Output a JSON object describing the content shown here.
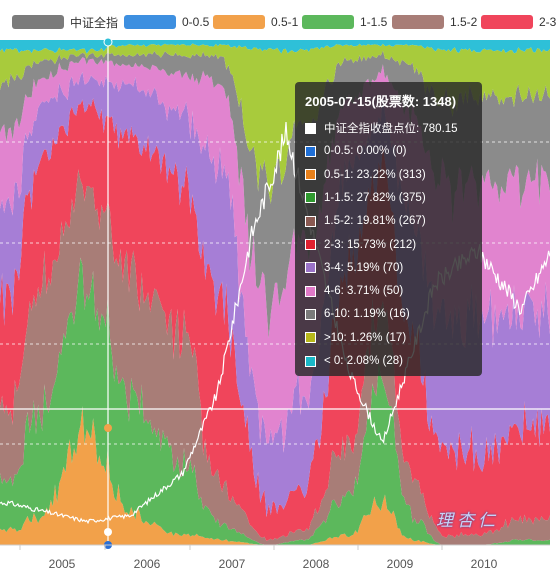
{
  "legend": [
    {
      "label": "中证全指",
      "color": "#7b7b7b"
    },
    {
      "label": "0-0.5",
      "color": "#3d8fe0"
    },
    {
      "label": "0.5-1",
      "color": "#f2a14a"
    },
    {
      "label": "1-1.5",
      "color": "#5cb85c"
    },
    {
      "label": "1.5-2",
      "color": "#a87d77"
    },
    {
      "label": "2-3",
      "color": "#f0455b"
    }
  ],
  "tooltip": {
    "title": "2005-07-15(股票数: 1348)",
    "rows": [
      {
        "text": "中证全指收盘点位: 780.15",
        "color": "#ffffff"
      },
      {
        "text": "0-0.5: 0.00% (0)",
        "color": "#1f6fd6"
      },
      {
        "text": "0.5-1: 23.22% (313)",
        "color": "#e8801a"
      },
      {
        "text": "1-1.5: 27.82% (375)",
        "color": "#2f9a2f"
      },
      {
        "text": "1.5-2: 19.81% (267)",
        "color": "#8a5a52"
      },
      {
        "text": "2-3: 15.73% (212)",
        "color": "#e01f2f"
      },
      {
        "text": "3-4: 5.19% (70)",
        "color": "#9a72c8"
      },
      {
        "text": "4-6: 3.71% (50)",
        "color": "#e07ac8"
      },
      {
        "text": "6-10: 1.19% (16)",
        "color": "#7a7a7a"
      },
      {
        "text": ">10: 1.26% (17)",
        "color": "#b8b81a"
      },
      {
        "text": "< 0: 2.08% (28)",
        "color": "#1ab8c8"
      }
    ]
  },
  "watermark": "理杏仁",
  "chart_data": {
    "type": "area",
    "stacked": "percent",
    "x_axis_ticks": [
      "2005",
      "2006",
      "2007",
      "2008",
      "2009",
      "2010"
    ],
    "x_range": [
      "2004-06",
      "2010-12"
    ],
    "series": [
      {
        "name": "0-0.5",
        "color": "#3d8fe0"
      },
      {
        "name": "0.5-1",
        "color": "#f2a14a"
      },
      {
        "name": "1-1.5",
        "color": "#5cb85c"
      },
      {
        "name": "1.5-2",
        "color": "#a87d77"
      },
      {
        "name": "2-3",
        "color": "#f0455b"
      },
      {
        "name": "3-4",
        "color": "#a67ed6"
      },
      {
        "name": "4-6",
        "color": "#e184cf"
      },
      {
        "name": "6-10",
        "color": "#8b8b8b"
      },
      {
        "name": ">10",
        "color": "#a8cb3c"
      },
      {
        "name": "< 0",
        "color": "#2ec0d8"
      }
    ],
    "approx_shares_over_time": {
      "dates": [
        "2004.6",
        "2005.0",
        "2005.5",
        "2006.0",
        "2006.6",
        "2007.0",
        "2007.6",
        "2008.0",
        "2008.5",
        "2008.9",
        "2009.2",
        "2009.6",
        "2010.0",
        "2010.5",
        "2010.9"
      ],
      "0-0.5": [
        0,
        0,
        0,
        0,
        0,
        0,
        0,
        0,
        0,
        0,
        0,
        0,
        0,
        0,
        0
      ],
      "0.5-1": [
        3,
        6,
        24,
        6,
        2,
        1,
        0,
        0,
        2,
        8,
        1,
        0,
        0,
        0,
        0
      ],
      "1-1.5": [
        10,
        22,
        28,
        24,
        14,
        3,
        0,
        1,
        8,
        25,
        5,
        0,
        0,
        1,
        1
      ],
      "1.5-2": [
        15,
        24,
        20,
        25,
        25,
        8,
        1,
        2,
        10,
        15,
        8,
        2,
        2,
        4,
        4
      ],
      "2-3": [
        22,
        26,
        16,
        26,
        30,
        38,
        6,
        8,
        34,
        28,
        28,
        16,
        16,
        18,
        18
      ],
      "3-4": [
        18,
        10,
        5,
        10,
        14,
        26,
        14,
        18,
        20,
        10,
        24,
        26,
        26,
        24,
        24
      ],
      "4-6": [
        14,
        5,
        4,
        4,
        8,
        16,
        26,
        30,
        14,
        8,
        20,
        28,
        26,
        26,
        26
      ],
      "6-10": [
        10,
        3,
        1,
        2,
        4,
        5,
        25,
        24,
        8,
        3,
        9,
        16,
        18,
        16,
        16
      ],
      ">10": [
        6,
        2,
        1,
        2,
        2,
        2,
        26,
        15,
        3,
        2,
        4,
        10,
        10,
        9,
        9
      ],
      "< 0": [
        2,
        2,
        2,
        1,
        1,
        1,
        2,
        2,
        1,
        1,
        1,
        2,
        2,
        2,
        2
      ]
    },
    "index_series": {
      "name": "中证全指",
      "color": "#ffffff",
      "approx_values": [
        [
          "2004.6",
          1000
        ],
        [
          "2005.0",
          900
        ],
        [
          "2005.5",
          780
        ],
        [
          "2006.0",
          850
        ],
        [
          "2006.6",
          1350
        ],
        [
          "2007.0",
          2300
        ],
        [
          "2007.4",
          4200
        ],
        [
          "2007.8",
          5400
        ],
        [
          "2008.0",
          4600
        ],
        [
          "2008.5",
          2600
        ],
        [
          "2008.9",
          1700
        ],
        [
          "2009.5",
          3600
        ],
        [
          "2010.0",
          4000
        ],
        [
          "2010.5",
          3300
        ],
        [
          "2010.9",
          4100
        ]
      ]
    },
    "highlighted_date": "2005-07-15",
    "grid": "dashed-horizontal"
  }
}
